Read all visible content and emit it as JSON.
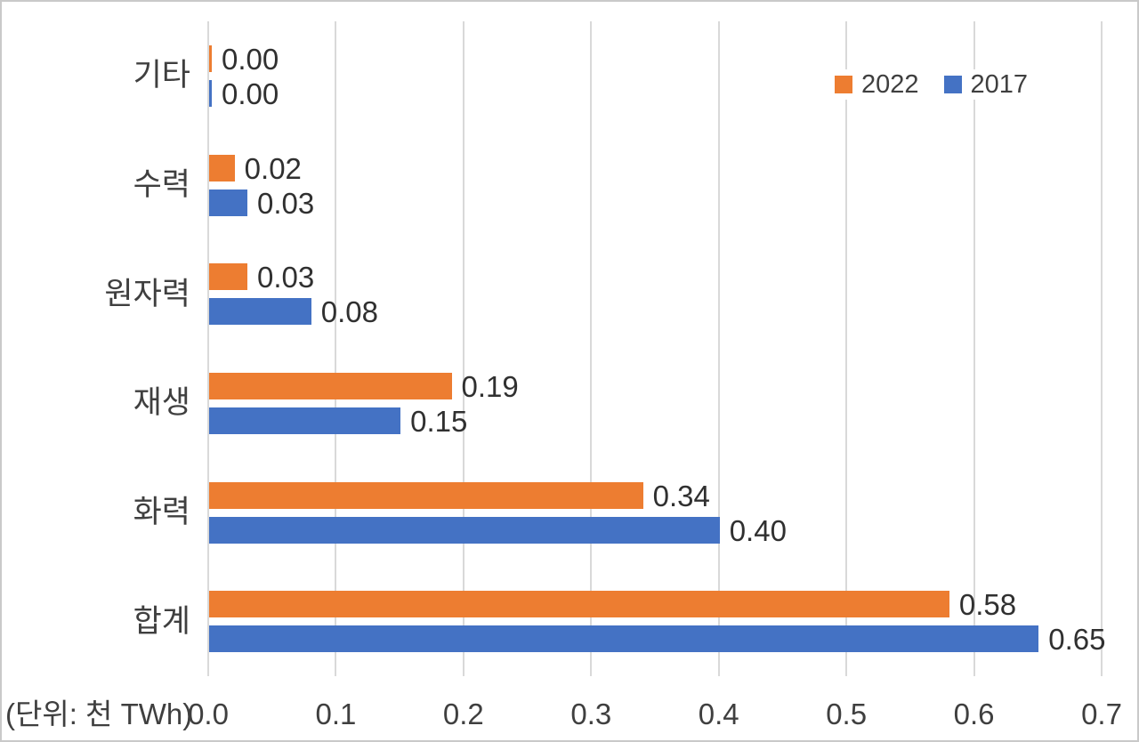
{
  "chart_data": {
    "type": "bar",
    "orientation": "horizontal",
    "title": "",
    "unit_label": "(단위: 천 TWh)",
    "categories": [
      "기타",
      "수력",
      "원자력",
      "재생",
      "화력",
      "합계"
    ],
    "series": [
      {
        "name": "2022",
        "color": "#ED7D31",
        "values": [
          0.0,
          0.02,
          0.03,
          0.19,
          0.34,
          0.58
        ],
        "data_labels": [
          "0.00",
          "0.02",
          "0.03",
          "0.19",
          "0.34",
          "0.58"
        ]
      },
      {
        "name": "2017",
        "color": "#4472C4",
        "values": [
          0.0,
          0.03,
          0.08,
          0.15,
          0.4,
          0.65
        ],
        "data_labels": [
          "0.00",
          "0.03",
          "0.08",
          "0.15",
          "0.40",
          "0.65"
        ]
      }
    ],
    "x_axis": {
      "min": 0,
      "max": 0.7,
      "ticks": [
        "0.0",
        "0.1",
        "0.2",
        "0.3",
        "0.4",
        "0.5",
        "0.6",
        "0.7"
      ]
    },
    "legend": {
      "position": "top-right",
      "entries": [
        {
          "label": "2022",
          "color": "#ED7D31"
        },
        {
          "label": "2017",
          "color": "#4472C4"
        }
      ]
    },
    "grid": true
  },
  "colors": {
    "background": "#FFFFFF",
    "border": "#C9C9C9",
    "gridline": "#D9D9D9",
    "text": "#3F3F3F",
    "series_2022": "#ED7D31",
    "series_2017": "#4472C4"
  }
}
